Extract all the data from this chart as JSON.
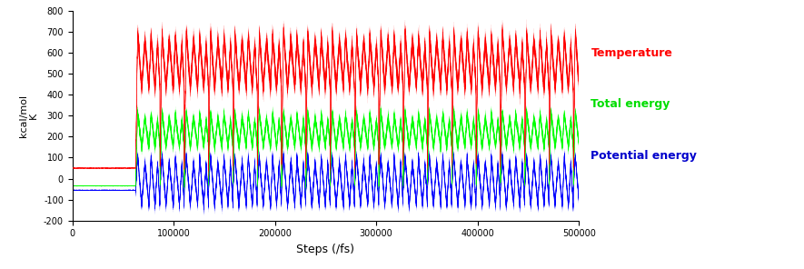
{
  "title": "",
  "xlabel": "Steps (/fs)",
  "ylabel": "kcal/mol\nK",
  "xlim": [
    0,
    500000
  ],
  "ylim": [
    -200,
    800
  ],
  "yticks": [
    -200,
    -100,
    0,
    100,
    200,
    300,
    400,
    500,
    600,
    700,
    800
  ],
  "xticks": [
    0,
    100000,
    200000,
    300000,
    400000,
    500000
  ],
  "xtick_labels": [
    "0",
    "100000",
    "200000",
    "300000",
    "400000",
    "500000"
  ],
  "bg_color": "#ffffff",
  "legend_labels": [
    "Temperature",
    "Total energy",
    "Potential energy"
  ],
  "legend_colors": [
    "#ff0000",
    "#00dd00",
    "#0000cc"
  ],
  "anneal_start": 62500,
  "n_cycles": 18,
  "cycle_period": 24000,
  "temp_flat_value": 50,
  "total_flat_value": -35,
  "pot_flat_value": -55,
  "temp_peak1": 700,
  "temp_peak2": 660,
  "temp_trough": 430,
  "total_peak1": 320,
  "total_peak2": 290,
  "total_trough": 150,
  "pot_peak1": 110,
  "pot_peak2": 80,
  "pot_trough": -130
}
